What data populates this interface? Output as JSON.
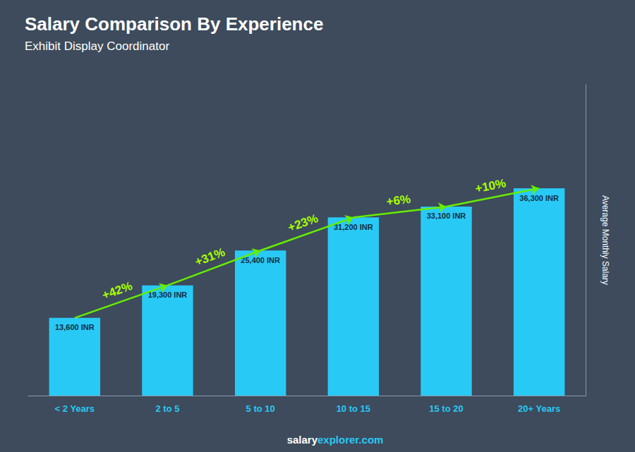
{
  "chart_data": {
    "type": "bar",
    "title": "Salary Comparison By Experience",
    "subtitle": "Exhibit Display Coordinator",
    "y_label": "Average Monthly Salary",
    "categories": [
      "< 2 Years",
      "2 to 5",
      "5 to 10",
      "10 to 15",
      "15 to 20",
      "20+ Years"
    ],
    "values": [
      13600,
      19300,
      25400,
      31200,
      33100,
      36300
    ],
    "value_labels": [
      "13,600 INR",
      "19,300 INR",
      "25,400 INR",
      "31,200 INR",
      "33,100 INR",
      "36,300 INR"
    ],
    "data_labels": true,
    "color": "#29c9f5",
    "annotations": [
      "+42%",
      "+31%",
      "+23%",
      "+6%",
      "+10%"
    ],
    "footer": [
      "salary",
      "explorer.com"
    ],
    "ylim": [
      0,
      54450
    ],
    "tick_labels": "x",
    "grid": false
  }
}
